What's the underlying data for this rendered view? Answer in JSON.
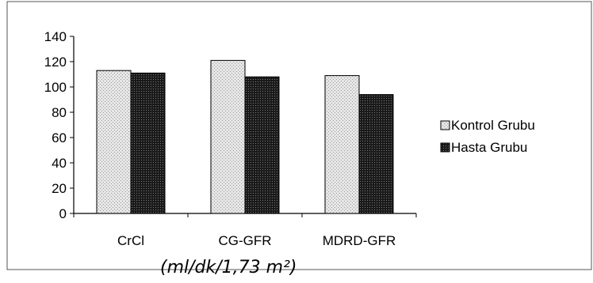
{
  "chart_data": {
    "type": "bar",
    "categories": [
      "CrCl",
      "CG-GFR",
      "MDRD-GFR"
    ],
    "series": [
      {
        "name": "Kontrol Grubu",
        "values": [
          113,
          121,
          109
        ],
        "color": "#d9d9d9"
      },
      {
        "name": "Hasta Grubu",
        "values": [
          111,
          108,
          94
        ],
        "color": "#262626"
      }
    ],
    "ylim": [
      0,
      140
    ],
    "yticks": [
      0,
      20,
      40,
      60,
      80,
      100,
      120,
      140
    ],
    "xlabel": "(ml/dk/1,73 m²)",
    "grid": false,
    "legend_position": "right"
  }
}
